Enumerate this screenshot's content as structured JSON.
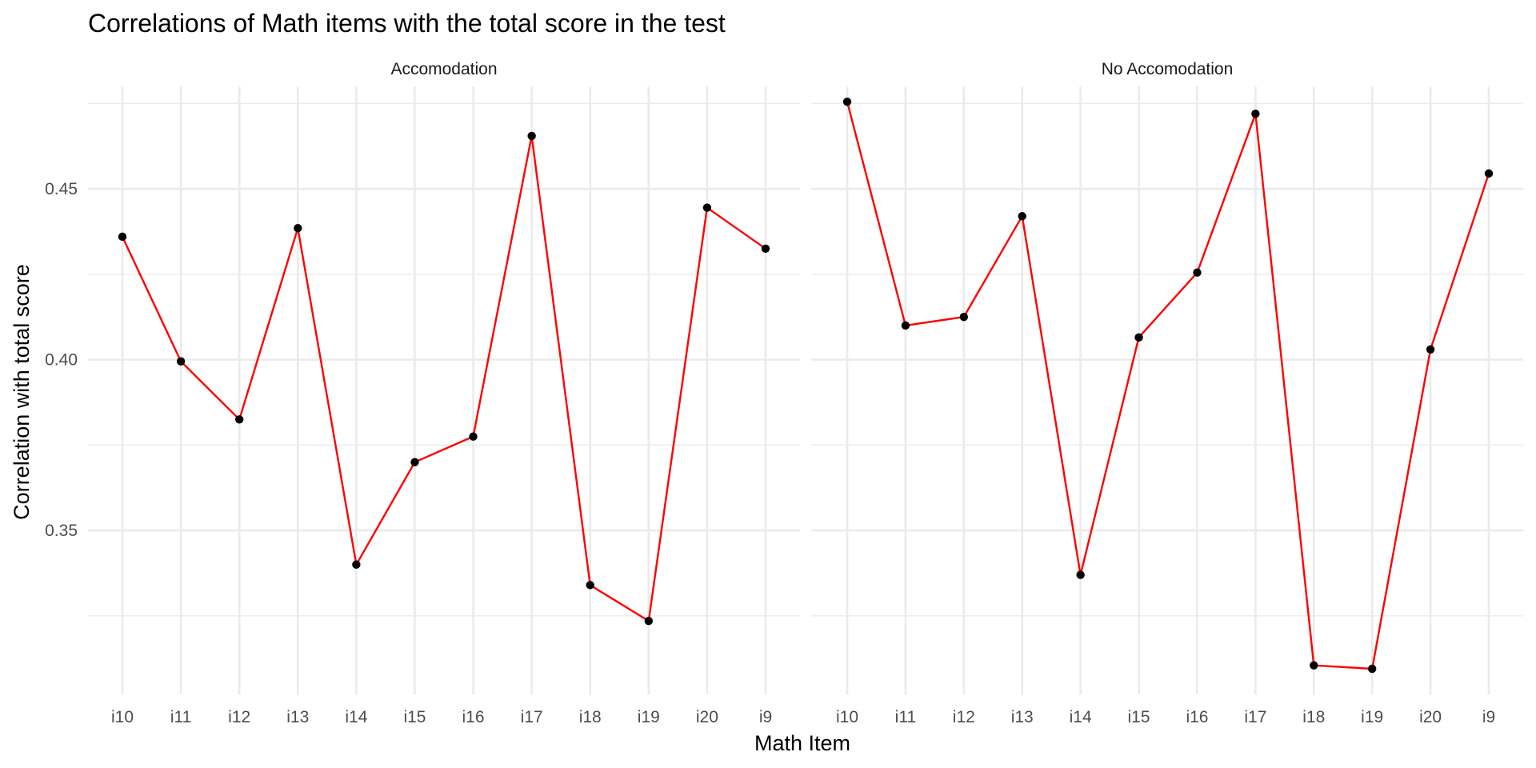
{
  "chart_data": {
    "type": "line",
    "title": "Correlations of Math items with the total score in the test",
    "xlabel": "Math Item",
    "ylabel": "Correlation with total score",
    "categories": [
      "i10",
      "i11",
      "i12",
      "i13",
      "i14",
      "i15",
      "i16",
      "i17",
      "i18",
      "i19",
      "i20",
      "i9"
    ],
    "y_ticks": [
      "0.35",
      "0.40",
      "0.45"
    ],
    "ylim": [
      0.302,
      0.48
    ],
    "grid": true,
    "panels": [
      {
        "label": "Accomodation",
        "values": [
          0.436,
          0.3995,
          0.3825,
          0.4385,
          0.34,
          0.37,
          0.3775,
          0.4655,
          0.334,
          0.3235,
          0.4445,
          0.4325
        ]
      },
      {
        "label": "No Accomodation",
        "values": [
          0.4755,
          0.41,
          0.4125,
          0.442,
          0.337,
          0.4065,
          0.4255,
          0.472,
          0.3105,
          0.3095,
          0.403,
          0.4545
        ]
      }
    ],
    "line_color": "#ff0000",
    "point_color": "#000000",
    "grid_color": "#ebebeb"
  }
}
